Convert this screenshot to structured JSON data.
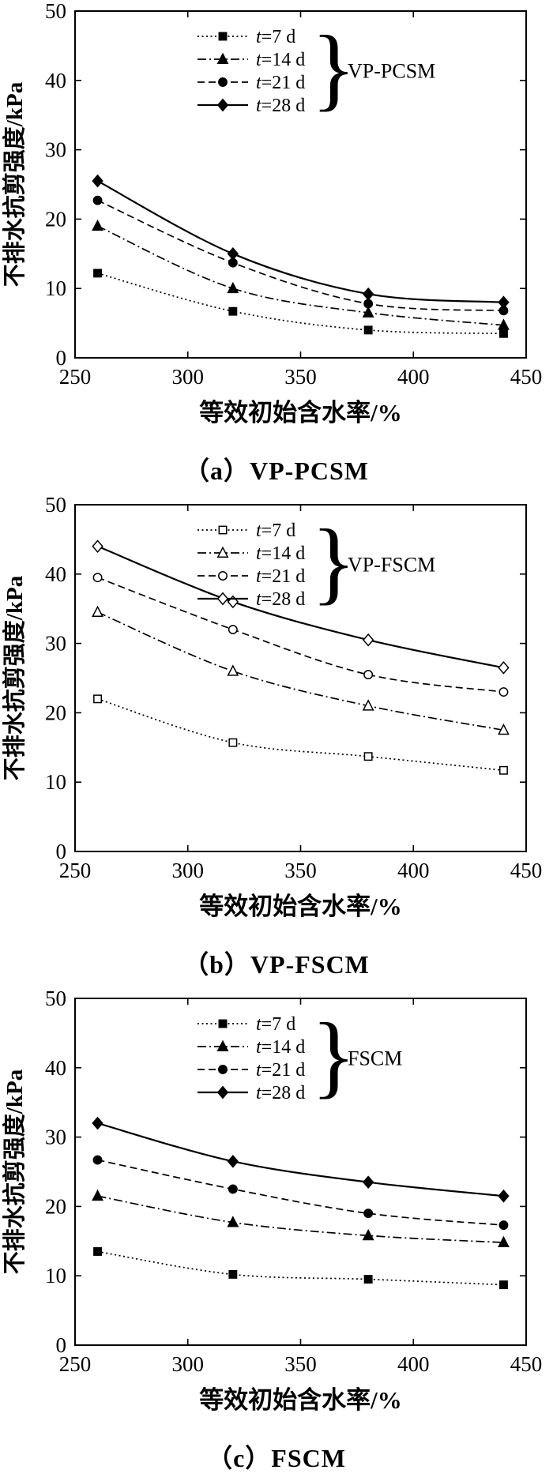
{
  "figure": {
    "background": "#ffffff",
    "ink": "#000000"
  },
  "chart_data": [
    {
      "type": "line",
      "caption": "（a）VP-PCSM",
      "xlabel": "等效初始含水率/%",
      "ylabel": "不排水抗剪强度/kPa",
      "xlim": [
        250,
        450
      ],
      "ylim": [
        0,
        50
      ],
      "xticks": [
        250,
        300,
        350,
        400,
        450
      ],
      "yticks": [
        0,
        10,
        20,
        30,
        40,
        50
      ],
      "x": [
        260,
        320,
        380,
        440
      ],
      "legend_group": "VP-PCSM",
      "marker_fill": "filled",
      "series": [
        {
          "name": "t=7 d",
          "marker": "square",
          "line": "dotted",
          "values": [
            12.2,
            6.7,
            4.0,
            3.5
          ]
        },
        {
          "name": "t=14 d",
          "marker": "triangle",
          "line": "dashdot",
          "values": [
            19.0,
            10.0,
            6.5,
            4.7
          ]
        },
        {
          "name": "t=21 d",
          "marker": "circle",
          "line": "dashed",
          "values": [
            22.7,
            13.7,
            7.8,
            6.8
          ]
        },
        {
          "name": "t=28 d",
          "marker": "diamond",
          "line": "solid",
          "values": [
            25.5,
            15.0,
            9.2,
            8.0
          ]
        }
      ]
    },
    {
      "type": "line",
      "caption": "（b）VP-FSCM",
      "xlabel": "等效初始含水率/%",
      "ylabel": "不排水抗剪强度/kPa",
      "xlim": [
        250,
        450
      ],
      "ylim": [
        0,
        50
      ],
      "xticks": [
        250,
        300,
        350,
        400,
        450
      ],
      "yticks": [
        0,
        10,
        20,
        30,
        40,
        50
      ],
      "x": [
        260,
        320,
        380,
        440
      ],
      "legend_group": "VP-FSCM",
      "marker_fill": "open",
      "series": [
        {
          "name": "t=7 d",
          "marker": "square",
          "line": "dotted",
          "values": [
            22.0,
            15.7,
            13.7,
            11.7
          ]
        },
        {
          "name": "t=14 d",
          "marker": "triangle",
          "line": "dashdot",
          "values": [
            34.5,
            26.0,
            21.0,
            17.5
          ]
        },
        {
          "name": "t=21 d",
          "marker": "circle",
          "line": "dashed",
          "values": [
            39.5,
            32.0,
            25.5,
            23.0
          ]
        },
        {
          "name": "t=28 d",
          "marker": "diamond",
          "line": "solid",
          "values": [
            44.0,
            36.0,
            30.5,
            26.5
          ]
        }
      ]
    },
    {
      "type": "line",
      "caption": "（c）FSCM",
      "xlabel": "等效初始含水率/%",
      "ylabel": "不排水抗剪强度/kPa",
      "xlim": [
        250,
        450
      ],
      "ylim": [
        0,
        50
      ],
      "xticks": [
        250,
        300,
        350,
        400,
        450
      ],
      "yticks": [
        0,
        10,
        20,
        30,
        40,
        50
      ],
      "x": [
        260,
        320,
        380,
        440
      ],
      "legend_group": "FSCM",
      "marker_fill": "filled",
      "series": [
        {
          "name": "t=7 d",
          "marker": "square",
          "line": "dotted",
          "values": [
            13.5,
            10.2,
            9.5,
            8.7
          ]
        },
        {
          "name": "t=14 d",
          "marker": "triangle",
          "line": "dashdot",
          "values": [
            21.5,
            17.7,
            15.8,
            14.8
          ]
        },
        {
          "name": "t=21 d",
          "marker": "circle",
          "line": "dashed",
          "values": [
            26.7,
            22.5,
            19.0,
            17.3
          ]
        },
        {
          "name": "t=28 d",
          "marker": "diamond",
          "line": "solid",
          "values": [
            32.0,
            26.5,
            23.5,
            21.5
          ]
        }
      ]
    }
  ]
}
